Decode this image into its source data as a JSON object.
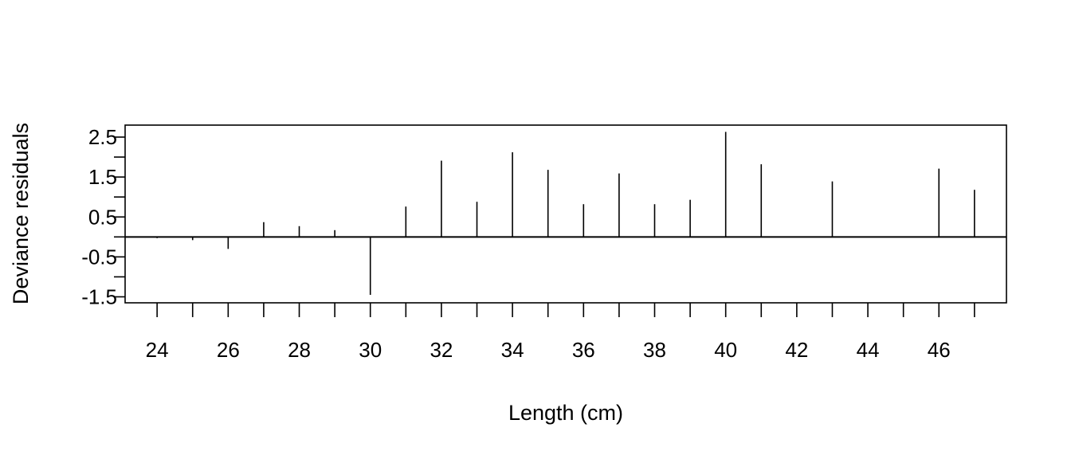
{
  "chart_data": {
    "type": "bar",
    "subtype": "residual-spikes",
    "title": "",
    "xlabel": "Length (cm)",
    "ylabel": "Deviance residuals",
    "xlim": [
      23.1,
      47.9
    ],
    "ylim": [
      -1.65,
      2.8
    ],
    "x_ticks": [
      24,
      25,
      26,
      27,
      28,
      29,
      30,
      31,
      32,
      33,
      34,
      35,
      36,
      37,
      38,
      39,
      40,
      41,
      42,
      43,
      44,
      45,
      46,
      47
    ],
    "x_tick_labels": [
      "24",
      "26",
      "28",
      "30",
      "32",
      "34",
      "36",
      "38",
      "40",
      "42",
      "44",
      "46"
    ],
    "x_tick_label_values": [
      24,
      26,
      28,
      30,
      32,
      34,
      36,
      38,
      40,
      42,
      44,
      46
    ],
    "y_ticks": [
      2.5,
      2.0,
      1.5,
      1.0,
      0.5,
      0.0,
      -0.5,
      -1.0,
      -1.5
    ],
    "y_tick_labels": [
      "2.5",
      "1.5",
      "0.5",
      "-0.5",
      "-1.5"
    ],
    "y_tick_label_values": [
      2.5,
      1.5,
      0.5,
      -0.5,
      -1.5
    ],
    "zero_line": 0,
    "series": [
      {
        "x": [
          24,
          25,
          26,
          27,
          28,
          29,
          30,
          31,
          32,
          33,
          34,
          35,
          36,
          37,
          38,
          39,
          40,
          41,
          42,
          43,
          44,
          45,
          46,
          47
        ],
        "values": [
          -0.03,
          -0.08,
          -0.3,
          0.37,
          0.27,
          0.17,
          -1.45,
          0.76,
          1.91,
          0.88,
          2.12,
          1.68,
          0.82,
          1.59,
          0.82,
          0.93,
          2.63,
          1.82,
          0,
          1.39,
          0,
          0,
          1.71,
          1.18
        ]
      }
    ],
    "grid": false,
    "legend": "none",
    "colors": {
      "line": "#000000",
      "background": "#ffffff"
    }
  }
}
